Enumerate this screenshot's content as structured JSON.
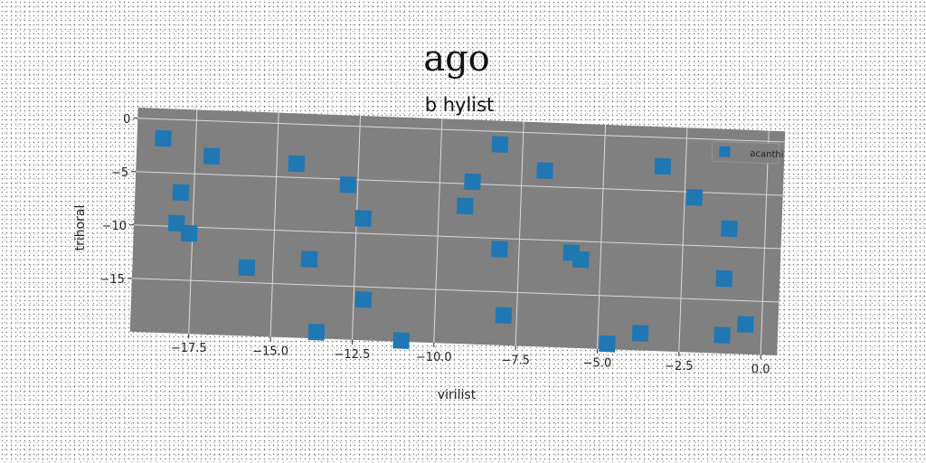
{
  "chart_data": {
    "type": "scatter",
    "title": "ago",
    "subtitle": "b hylist",
    "xlabel": "virilist",
    "ylabel": "trihoral",
    "xlim": [
      -19.3,
      0.5
    ],
    "ylim": [
      -20.0,
      1.0
    ],
    "xticks": [
      -17.5,
      -15.0,
      -12.5,
      -10.0,
      -7.5,
      -5.0,
      -2.5,
      0.0
    ],
    "xtick_labels": [
      "−17.5",
      "−15.0",
      "−12.5",
      "−10.0",
      "−7.5",
      "−5.0",
      "−2.5",
      "0.0"
    ],
    "yticks": [
      0,
      -5,
      -10,
      -15
    ],
    "ytick_labels": [
      "0",
      "−5",
      "−10",
      "−15"
    ],
    "grid": true,
    "legend_position": "top-right",
    "colors": {
      "plot_bg": "#808080",
      "marker": "#1f77b4",
      "grid": "#d9d9d9"
    },
    "series": [
      {
        "name": "acanthi",
        "points": [
          [
            -18.5,
            -1.8
          ],
          [
            -17.0,
            -3.3
          ],
          [
            -14.4,
            -3.7
          ],
          [
            -8.2,
            -1.2
          ],
          [
            -6.8,
            -3.5
          ],
          [
            -3.2,
            -2.7
          ],
          [
            -17.9,
            -6.8
          ],
          [
            -12.8,
            -5.5
          ],
          [
            -9.0,
            -4.8
          ],
          [
            -9.2,
            -7.1
          ],
          [
            -2.2,
            -5.5
          ],
          [
            -12.3,
            -8.6
          ],
          [
            -1.1,
            -8.3
          ],
          [
            -18.0,
            -9.7
          ],
          [
            -17.6,
            -10.6
          ],
          [
            -8.1,
            -11.0
          ],
          [
            -5.9,
            -11.1
          ],
          [
            -5.6,
            -11.7
          ],
          [
            -15.8,
            -13.6
          ],
          [
            -13.9,
            -12.6
          ],
          [
            -1.2,
            -13.0
          ],
          [
            -12.2,
            -16.2
          ],
          [
            -7.9,
            -17.2
          ],
          [
            -13.6,
            -19.4
          ],
          [
            -11.0,
            -19.9
          ],
          [
            -4.7,
            -19.5
          ],
          [
            -3.7,
            -18.4
          ],
          [
            -1.2,
            -18.3
          ],
          [
            -0.5,
            -17.2
          ]
        ]
      }
    ]
  }
}
